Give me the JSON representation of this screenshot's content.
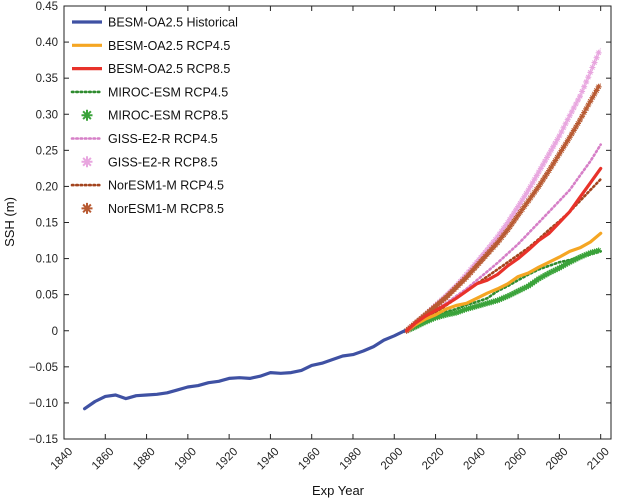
{
  "chart_data": {
    "type": "line",
    "title": "",
    "xlabel": "Exp Year",
    "ylabel": "SSH (m)",
    "xlim": [
      1840,
      2105
    ],
    "ylim": [
      -0.15,
      0.45
    ],
    "xticks": [
      1840,
      1860,
      1880,
      1900,
      1920,
      1940,
      1960,
      1980,
      2000,
      2020,
      2040,
      2060,
      2080,
      2100
    ],
    "yticks": [
      -0.15,
      -0.1,
      -0.05,
      0,
      0.05,
      0.1,
      0.15,
      0.2,
      0.25,
      0.3,
      0.35,
      0.4,
      0.45
    ],
    "ytick_labels": [
      "−0.15",
      "−0.10",
      "−0.05",
      "0",
      "0.05",
      "0.10",
      "0.15",
      "0.20",
      "0.25",
      "0.30",
      "0.35",
      "0.40",
      "0.45"
    ],
    "grid": false,
    "legend_position": "top-left",
    "series": [
      {
        "name": "BESM-OA2.5 Historical",
        "color": "#3f51a3",
        "style": "line",
        "x": [
          1850,
          1855,
          1860,
          1865,
          1870,
          1875,
          1880,
          1885,
          1890,
          1895,
          1900,
          1905,
          1910,
          1915,
          1920,
          1925,
          1930,
          1935,
          1940,
          1945,
          1950,
          1955,
          1960,
          1965,
          1970,
          1975,
          1980,
          1985,
          1990,
          1995,
          2000,
          2005
        ],
        "y": [
          -0.108,
          -0.098,
          -0.091,
          -0.089,
          -0.094,
          -0.09,
          -0.089,
          -0.088,
          -0.086,
          -0.082,
          -0.078,
          -0.076,
          -0.072,
          -0.07,
          -0.066,
          -0.065,
          -0.066,
          -0.063,
          -0.058,
          -0.059,
          -0.058,
          -0.055,
          -0.048,
          -0.045,
          -0.04,
          -0.035,
          -0.033,
          -0.028,
          -0.022,
          -0.013,
          -0.007,
          0.0
        ]
      },
      {
        "name": "BESM-OA2.5 RCP4.5",
        "color": "#f5a623",
        "style": "line",
        "x": [
          2006,
          2010,
          2015,
          2020,
          2025,
          2030,
          2035,
          2040,
          2045,
          2050,
          2055,
          2060,
          2065,
          2070,
          2075,
          2080,
          2085,
          2090,
          2095,
          2100
        ],
        "y": [
          0.0,
          0.008,
          0.016,
          0.022,
          0.03,
          0.035,
          0.038,
          0.045,
          0.052,
          0.058,
          0.065,
          0.075,
          0.08,
          0.088,
          0.095,
          0.102,
          0.11,
          0.115,
          0.123,
          0.135
        ]
      },
      {
        "name": "BESM-OA2.5 RCP8.5",
        "color": "#e8322a",
        "style": "line",
        "x": [
          2006,
          2010,
          2015,
          2020,
          2025,
          2030,
          2035,
          2040,
          2045,
          2050,
          2055,
          2060,
          2065,
          2070,
          2075,
          2080,
          2085,
          2090,
          2095,
          2100
        ],
        "y": [
          0.0,
          0.01,
          0.02,
          0.028,
          0.036,
          0.045,
          0.055,
          0.065,
          0.07,
          0.078,
          0.09,
          0.1,
          0.112,
          0.125,
          0.135,
          0.15,
          0.165,
          0.185,
          0.205,
          0.225
        ]
      },
      {
        "name": "MIROC-ESM RCP4.5",
        "color": "#2e8b2e",
        "style": "dotted",
        "x": [
          2006,
          2010,
          2015,
          2020,
          2025,
          2030,
          2035,
          2040,
          2045,
          2050,
          2055,
          2060,
          2065,
          2070,
          2075,
          2080,
          2085,
          2090,
          2095,
          2100
        ],
        "y": [
          0.0,
          0.006,
          0.014,
          0.02,
          0.026,
          0.03,
          0.036,
          0.04,
          0.045,
          0.055,
          0.062,
          0.07,
          0.078,
          0.085,
          0.09,
          0.095,
          0.098,
          0.102,
          0.106,
          0.11
        ]
      },
      {
        "name": "MIROC-ESM RCP8.5",
        "color": "#3aa33a",
        "style": "marker",
        "x": [
          2006,
          2010,
          2015,
          2020,
          2025,
          2030,
          2035,
          2040,
          2045,
          2050,
          2055,
          2060,
          2065,
          2070,
          2075,
          2080,
          2085,
          2090,
          2095,
          2100
        ],
        "y": [
          0.0,
          0.005,
          0.012,
          0.018,
          0.022,
          0.025,
          0.03,
          0.034,
          0.038,
          0.042,
          0.048,
          0.055,
          0.062,
          0.072,
          0.08,
          0.087,
          0.095,
          0.102,
          0.108,
          0.112
        ]
      },
      {
        "name": "GISS-E2-R RCP4.5",
        "color": "#d67fc7",
        "style": "dotted",
        "x": [
          2006,
          2010,
          2015,
          2020,
          2025,
          2030,
          2035,
          2040,
          2045,
          2050,
          2055,
          2060,
          2065,
          2070,
          2075,
          2080,
          2085,
          2090,
          2095,
          2100
        ],
        "y": [
          0.0,
          0.008,
          0.018,
          0.028,
          0.038,
          0.048,
          0.058,
          0.07,
          0.082,
          0.094,
          0.107,
          0.12,
          0.135,
          0.15,
          0.165,
          0.18,
          0.195,
          0.215,
          0.235,
          0.258
        ]
      },
      {
        "name": "GISS-E2-R RCP8.5",
        "color": "#e8a6df",
        "style": "marker",
        "x": [
          2006,
          2010,
          2015,
          2020,
          2025,
          2030,
          2035,
          2040,
          2045,
          2050,
          2055,
          2060,
          2065,
          2070,
          2075,
          2080,
          2085,
          2090,
          2095,
          2100
        ],
        "y": [
          0.0,
          0.01,
          0.022,
          0.035,
          0.048,
          0.062,
          0.078,
          0.095,
          0.112,
          0.13,
          0.15,
          0.172,
          0.195,
          0.22,
          0.245,
          0.27,
          0.298,
          0.325,
          0.358,
          0.392
        ]
      },
      {
        "name": "NorESM1-M RCP4.5",
        "color": "#a3441e",
        "style": "dotted",
        "x": [
          2006,
          2010,
          2015,
          2020,
          2025,
          2030,
          2035,
          2040,
          2045,
          2050,
          2055,
          2060,
          2065,
          2070,
          2075,
          2080,
          2085,
          2090,
          2095,
          2100
        ],
        "y": [
          0.0,
          0.008,
          0.016,
          0.025,
          0.035,
          0.045,
          0.055,
          0.065,
          0.075,
          0.085,
          0.095,
          0.105,
          0.115,
          0.127,
          0.14,
          0.152,
          0.165,
          0.18,
          0.195,
          0.21
        ]
      },
      {
        "name": "NorESM1-M RCP8.5",
        "color": "#b85a32",
        "style": "marker",
        "x": [
          2006,
          2010,
          2015,
          2020,
          2025,
          2030,
          2035,
          2040,
          2045,
          2050,
          2055,
          2060,
          2065,
          2070,
          2075,
          2080,
          2085,
          2090,
          2095,
          2100
        ],
        "y": [
          0.0,
          0.01,
          0.022,
          0.034,
          0.046,
          0.06,
          0.074,
          0.09,
          0.106,
          0.122,
          0.14,
          0.16,
          0.18,
          0.2,
          0.222,
          0.245,
          0.268,
          0.292,
          0.318,
          0.343
        ]
      }
    ]
  }
}
